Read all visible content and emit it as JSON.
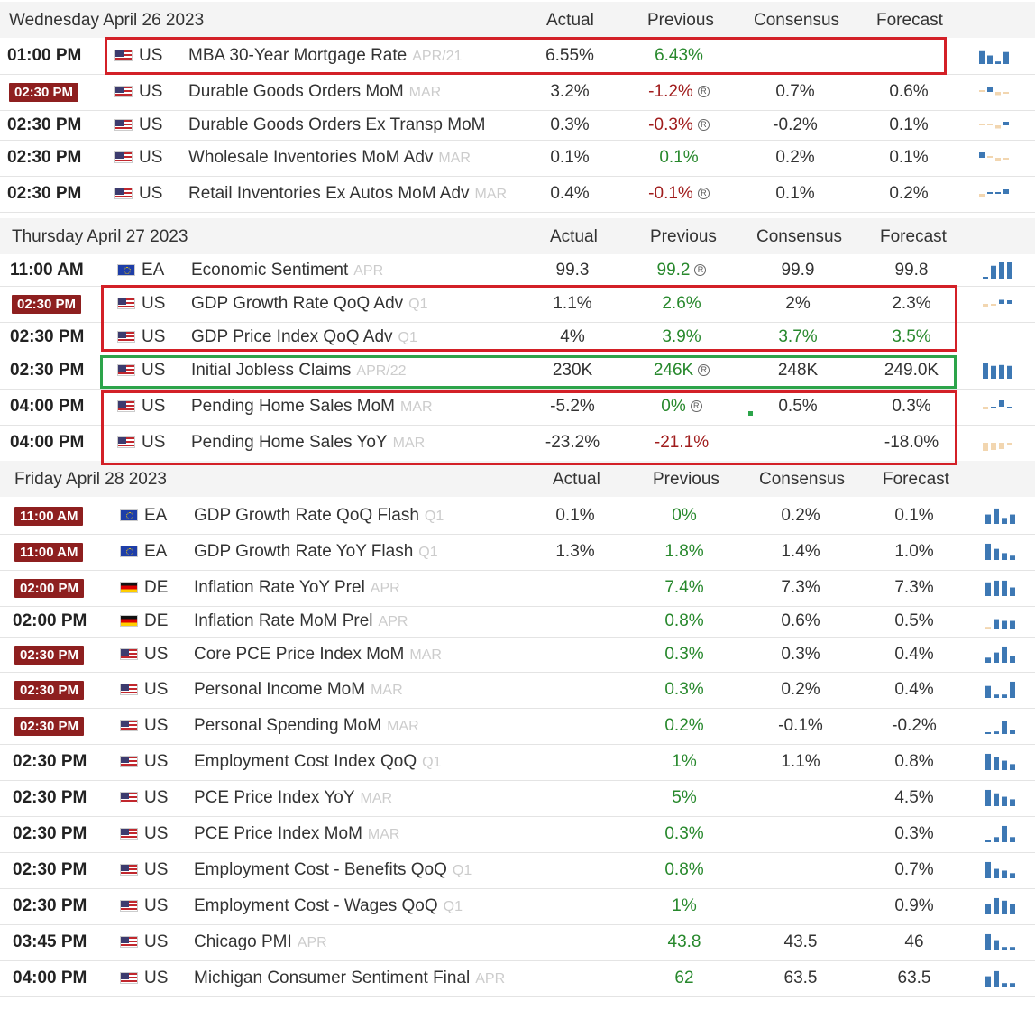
{
  "columns": {
    "actual": "Actual",
    "previous": "Previous",
    "consensus": "Consensus",
    "forecast": "Forecast"
  },
  "days": [
    {
      "date": "Wednesday April 26 2023",
      "events": [
        {
          "time": "01:00 PM",
          "badge": false,
          "country": "US",
          "flag": "us",
          "event": "MBA 30-Year Mortgage Rate",
          "period": "APR/21",
          "actual": "6.55%",
          "previous": "6.43%",
          "previous_color": "green",
          "previous_revised": false,
          "consensus": "",
          "consensus_color": "",
          "forecast": "",
          "forecast_color": "",
          "spark": [
            0.75,
            0.5,
            0.15,
            0.7
          ],
          "spark_colors": [
            "b",
            "b",
            "b",
            "b"
          ]
        },
        {
          "time": "02:30 PM",
          "badge": true,
          "country": "US",
          "flag": "us",
          "event": "Durable Goods Orders MoM",
          "period": "MAR",
          "actual": "3.2%",
          "previous": "-1.2%",
          "previous_color": "red",
          "previous_revised": true,
          "consensus": "0.7%",
          "consensus_color": "",
          "forecast": "0.6%",
          "forecast_color": "",
          "spark": [
            0.1,
            0.5,
            -0.35,
            -0.2
          ],
          "spark_colors": [
            "p",
            "b",
            "p",
            "p"
          ]
        },
        {
          "time": "02:30 PM",
          "badge": false,
          "country": "US",
          "flag": "us",
          "event": "Durable Goods Orders Ex Transp MoM",
          "period": "",
          "actual": "0.3%",
          "previous": "-0.3%",
          "previous_color": "red",
          "previous_revised": true,
          "consensus": "-0.2%",
          "consensus_color": "",
          "forecast": "0.1%",
          "forecast_color": "",
          "spark": [
            0,
            0,
            -0.35,
            0.4
          ],
          "spark_colors": [
            "p",
            "p",
            "p",
            "b"
          ]
        },
        {
          "time": "02:30 PM",
          "badge": false,
          "country": "US",
          "flag": "us",
          "event": "Wholesale Inventories MoM Adv",
          "period": "MAR",
          "actual": "0.1%",
          "previous": "0.1%",
          "previous_color": "green",
          "previous_revised": false,
          "consensus": "0.2%",
          "consensus_color": "",
          "forecast": "0.1%",
          "forecast_color": "",
          "spark": [
            0.6,
            0,
            -0.3,
            -0.1
          ],
          "spark_colors": [
            "b",
            "p",
            "p",
            "p"
          ]
        },
        {
          "time": "02:30 PM",
          "badge": false,
          "country": "US",
          "flag": "us",
          "event": "Retail Inventories Ex Autos MoM Adv",
          "period": "MAR",
          "actual": "0.4%",
          "previous": "-0.1%",
          "previous_color": "red",
          "previous_revised": true,
          "consensus": "0.1%",
          "consensus_color": "",
          "forecast": "0.2%",
          "forecast_color": "",
          "spark": [
            -0.4,
            0.15,
            0.15,
            0.5
          ],
          "spark_colors": [
            "p",
            "b",
            "b",
            "b"
          ]
        }
      ]
    },
    {
      "date": "Thursday April 27 2023",
      "events": [
        {
          "time": "11:00 AM",
          "badge": false,
          "country": "EA",
          "flag": "eu",
          "event": "Economic Sentiment",
          "period": "APR",
          "actual": "99.3",
          "previous": "99.2",
          "previous_color": "green",
          "previous_revised": true,
          "consensus": "99.9",
          "consensus_color": "",
          "forecast": "99.8",
          "forecast_color": "",
          "spark": [
            0.1,
            0.75,
            0.95,
            0.95
          ],
          "spark_colors": [
            "b",
            "b",
            "b",
            "b"
          ]
        },
        {
          "time": "02:30 PM",
          "badge": true,
          "country": "US",
          "flag": "us",
          "event": "GDP Growth Rate QoQ Adv",
          "period": "Q1",
          "actual": "1.1%",
          "previous": "2.6%",
          "previous_color": "green",
          "previous_revised": false,
          "consensus": "2%",
          "consensus_color": "",
          "forecast": "2.3%",
          "forecast_color": "",
          "spark": [
            -0.3,
            -0.1,
            0.45,
            0.4
          ],
          "spark_colors": [
            "p",
            "p",
            "b",
            "b"
          ]
        },
        {
          "time": "02:30 PM",
          "badge": false,
          "country": "US",
          "flag": "us",
          "event": "GDP Price Index QoQ Adv",
          "period": "Q1",
          "actual": "4%",
          "previous": "3.9%",
          "previous_color": "green",
          "previous_revised": false,
          "consensus": "3.7%",
          "consensus_color": "green",
          "forecast": "3.5%",
          "forecast_color": "green",
          "spark": [],
          "spark_colors": []
        },
        {
          "time": "02:30 PM",
          "badge": false,
          "country": "US",
          "flag": "us",
          "event": "Initial Jobless Claims",
          "period": "APR/22",
          "actual": "230K",
          "previous": "246K",
          "previous_color": "green",
          "previous_revised": true,
          "consensus": "248K",
          "consensus_color": "",
          "forecast": "249.0K",
          "forecast_color": "",
          "spark": [
            0.9,
            0.75,
            0.8,
            0.75
          ],
          "spark_colors": [
            "b",
            "b",
            "b",
            "b"
          ]
        },
        {
          "time": "04:00 PM",
          "badge": false,
          "country": "US",
          "flag": "us",
          "event": "Pending Home Sales MoM",
          "period": "MAR",
          "actual": "-5.2%",
          "previous": "0%",
          "previous_color": "green",
          "previous_revised": true,
          "consensus": "0.5%",
          "consensus_color": "",
          "forecast": "0.3%",
          "forecast_color": "",
          "spark": [
            -0.3,
            -0.15,
            0.7,
            -0.1
          ],
          "spark_colors": [
            "p",
            "b",
            "b",
            "b"
          ]
        },
        {
          "time": "04:00 PM",
          "badge": false,
          "country": "US",
          "flag": "us",
          "event": "Pending Home Sales YoY",
          "period": "MAR",
          "actual": "-23.2%",
          "previous": "-21.1%",
          "previous_color": "red",
          "previous_revised": false,
          "consensus": "",
          "consensus_color": "",
          "forecast": "-18.0%",
          "forecast_color": "",
          "spark": [
            -0.9,
            -0.8,
            -0.7,
            -0.2
          ],
          "spark_colors": [
            "p",
            "p",
            "p",
            "p"
          ]
        }
      ]
    },
    {
      "date": "Friday April 28 2023",
      "events": [
        {
          "time": "11:00 AM",
          "badge": true,
          "country": "EA",
          "flag": "eu",
          "event": "GDP Growth Rate QoQ Flash",
          "period": "Q1",
          "actual": "0.1%",
          "previous": "0%",
          "previous_color": "green",
          "previous_revised": false,
          "consensus": "0.2%",
          "consensus_color": "",
          "forecast": "0.1%",
          "forecast_color": "",
          "spark": [
            0.55,
            0.9,
            0.35,
            0.55
          ],
          "spark_colors": [
            "b",
            "b",
            "b",
            "b"
          ]
        },
        {
          "time": "11:00 AM",
          "badge": true,
          "country": "EA",
          "flag": "eu",
          "event": "GDP Growth Rate YoY Flash",
          "period": "Q1",
          "actual": "1.3%",
          "previous": "1.8%",
          "previous_color": "green",
          "previous_revised": false,
          "consensus": "1.4%",
          "consensus_color": "",
          "forecast": "1.0%",
          "forecast_color": "",
          "spark": [
            0.95,
            0.65,
            0.4,
            0.25
          ],
          "spark_colors": [
            "b",
            "b",
            "b",
            "b"
          ]
        },
        {
          "time": "02:00 PM",
          "badge": true,
          "country": "DE",
          "flag": "de",
          "event": "Inflation Rate YoY Prel",
          "period": "APR",
          "actual": "",
          "previous": "7.4%",
          "previous_color": "green",
          "previous_revised": false,
          "consensus": "7.3%",
          "consensus_color": "",
          "forecast": "7.3%",
          "forecast_color": "",
          "spark": [
            0.8,
            0.9,
            0.9,
            0.5
          ],
          "spark_colors": [
            "b",
            "b",
            "b",
            "b"
          ]
        },
        {
          "time": "02:00 PM",
          "badge": false,
          "country": "DE",
          "flag": "de",
          "event": "Inflation Rate MoM Prel",
          "period": "APR",
          "actual": "",
          "previous": "0.8%",
          "previous_color": "green",
          "previous_revised": false,
          "consensus": "0.6%",
          "consensus_color": "",
          "forecast": "0.5%",
          "forecast_color": "",
          "spark": [
            0.15,
            0.6,
            0.5,
            0.5
          ],
          "spark_colors": [
            "p",
            "b",
            "b",
            "b"
          ]
        },
        {
          "time": "02:30 PM",
          "badge": true,
          "country": "US",
          "flag": "us",
          "event": "Core PCE Price Index MoM",
          "period": "MAR",
          "actual": "",
          "previous": "0.3%",
          "previous_color": "green",
          "previous_revised": false,
          "consensus": "0.3%",
          "consensus_color": "",
          "forecast": "0.4%",
          "forecast_color": "",
          "spark": [
            0.3,
            0.6,
            0.95,
            0.4
          ],
          "spark_colors": [
            "b",
            "b",
            "b",
            "b"
          ]
        },
        {
          "time": "02:30 PM",
          "badge": true,
          "country": "US",
          "flag": "us",
          "event": "Personal Income MoM",
          "period": "MAR",
          "actual": "",
          "previous": "0.3%",
          "previous_color": "green",
          "previous_revised": false,
          "consensus": "0.2%",
          "consensus_color": "",
          "forecast": "0.4%",
          "forecast_color": "",
          "spark": [
            0.7,
            0.2,
            0.2,
            0.95
          ],
          "spark_colors": [
            "b",
            "b",
            "b",
            "b"
          ]
        },
        {
          "time": "02:30 PM",
          "badge": true,
          "country": "US",
          "flag": "us",
          "event": "Personal Spending MoM",
          "period": "MAR",
          "actual": "",
          "previous": "0.2%",
          "previous_color": "green",
          "previous_revised": false,
          "consensus": "-0.1%",
          "consensus_color": "",
          "forecast": "-0.2%",
          "forecast_color": "",
          "spark": [
            0,
            0.15,
            0.75,
            0.25
          ],
          "spark_colors": [
            "b",
            "b",
            "b",
            "b"
          ]
        },
        {
          "time": "02:30 PM",
          "badge": false,
          "country": "US",
          "flag": "us",
          "event": "Employment Cost Index QoQ",
          "period": "Q1",
          "actual": "",
          "previous": "1%",
          "previous_color": "green",
          "previous_revised": false,
          "consensus": "1.1%",
          "consensus_color": "",
          "forecast": "0.8%",
          "forecast_color": "",
          "spark": [
            0.95,
            0.75,
            0.55,
            0.35
          ],
          "spark_colors": [
            "b",
            "b",
            "b",
            "b"
          ]
        },
        {
          "time": "02:30 PM",
          "badge": false,
          "country": "US",
          "flag": "us",
          "event": "PCE Price Index YoY",
          "period": "MAR",
          "actual": "",
          "previous": "5%",
          "previous_color": "green",
          "previous_revised": false,
          "consensus": "",
          "consensus_color": "",
          "forecast": "4.5%",
          "forecast_color": "",
          "spark": [
            0.95,
            0.75,
            0.55,
            0.4
          ],
          "spark_colors": [
            "b",
            "b",
            "b",
            "b"
          ]
        },
        {
          "time": "02:30 PM",
          "badge": false,
          "country": "US",
          "flag": "us",
          "event": "PCE Price Index MoM",
          "period": "MAR",
          "actual": "",
          "previous": "0.3%",
          "previous_color": "green",
          "previous_revised": false,
          "consensus": "",
          "consensus_color": "",
          "forecast": "0.3%",
          "forecast_color": "",
          "spark": [
            0.15,
            0.3,
            0.95,
            0.3
          ],
          "spark_colors": [
            "b",
            "b",
            "b",
            "b"
          ]
        },
        {
          "time": "02:30 PM",
          "badge": false,
          "country": "US",
          "flag": "us",
          "event": "Employment Cost - Benefits QoQ",
          "period": "Q1",
          "actual": "",
          "previous": "0.8%",
          "previous_color": "green",
          "previous_revised": false,
          "consensus": "",
          "consensus_color": "",
          "forecast": "0.7%",
          "forecast_color": "",
          "spark": [
            0.95,
            0.55,
            0.45,
            0.3
          ],
          "spark_colors": [
            "b",
            "b",
            "b",
            "b"
          ]
        },
        {
          "time": "02:30 PM",
          "badge": false,
          "country": "US",
          "flag": "us",
          "event": "Employment Cost - Wages QoQ",
          "period": "Q1",
          "actual": "",
          "previous": "1%",
          "previous_color": "green",
          "previous_revised": false,
          "consensus": "",
          "consensus_color": "",
          "forecast": "0.9%",
          "forecast_color": "",
          "spark": [
            0.6,
            0.95,
            0.8,
            0.6
          ],
          "spark_colors": [
            "b",
            "b",
            "b",
            "b"
          ]
        },
        {
          "time": "03:45 PM",
          "badge": false,
          "country": "US",
          "flag": "us",
          "event": "Chicago PMI",
          "period": "APR",
          "actual": "",
          "previous": "43.8",
          "previous_color": "green",
          "previous_revised": false,
          "consensus": "43.5",
          "consensus_color": "",
          "forecast": "46",
          "forecast_color": "",
          "spark": [
            0.95,
            0.6,
            0.2,
            0.2
          ],
          "spark_colors": [
            "b",
            "b",
            "b",
            "b"
          ]
        },
        {
          "time": "04:00 PM",
          "badge": false,
          "country": "US",
          "flag": "us",
          "event": "Michigan Consumer Sentiment Final",
          "period": "APR",
          "actual": "",
          "previous": "62",
          "previous_color": "green",
          "previous_revised": false,
          "consensus": "63.5",
          "consensus_color": "",
          "forecast": "63.5",
          "forecast_color": "",
          "spark": [
            0.6,
            0.9,
            0.2,
            0.2
          ],
          "spark_colors": [
            "b",
            "b",
            "b",
            "b"
          ]
        }
      ]
    }
  ],
  "colors": {
    "spark_blue": "#3d78b4",
    "spark_pale": "#f2d6b0",
    "badge": "#8e1f1f",
    "highlight_red": "#d32027",
    "highlight_green": "#2ca44a",
    "green_text": "#27882c",
    "red_text": "#a01c1c"
  }
}
